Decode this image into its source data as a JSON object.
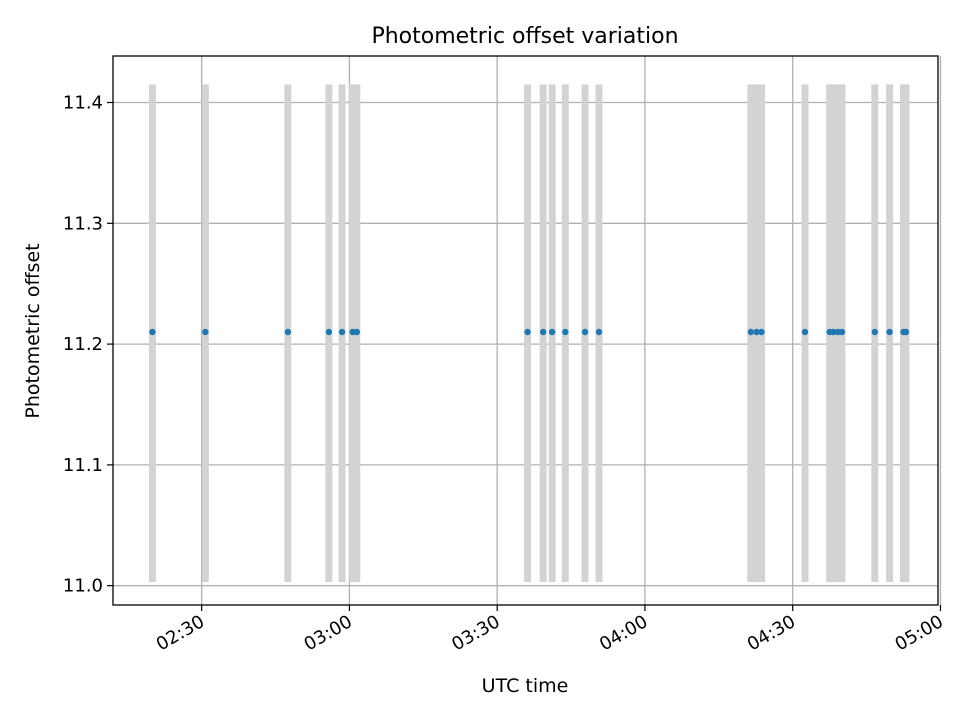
{
  "chart_data": {
    "type": "scatter",
    "title": "Photometric offset variation",
    "xlabel": "UTC time",
    "ylabel": "Photometric offset",
    "xlim": [
      "02:12:00",
      "04:59:30"
    ],
    "ylim": [
      10.984,
      11.4385
    ],
    "grid": true,
    "x_ticks": [
      "02:30",
      "03:00",
      "03:30",
      "04:00",
      "04:30",
      "05:00"
    ],
    "y_ticks": [
      11.0,
      11.1,
      11.2,
      11.3,
      11.4
    ],
    "y_tick_labels": [
      "11.0",
      "11.1",
      "11.2",
      "11.3",
      "11.4"
    ],
    "band": {
      "color": "#d3d3d3",
      "y_range": [
        11.003,
        11.415
      ]
    },
    "point_color": "#1f77b4",
    "x": [
      "02:20:00",
      "02:30:45",
      "02:47:30",
      "02:55:50",
      "02:58:30",
      "03:00:40",
      "03:01:30",
      "03:36:10",
      "03:39:20",
      "03:41:10",
      "03:43:50",
      "03:47:50",
      "03:50:40",
      "04:21:30",
      "04:22:40",
      "04:23:40",
      "04:32:30",
      "04:37:30",
      "04:38:15",
      "04:39:10",
      "04:40:00",
      "04:46:40",
      "04:49:40",
      "04:52:30",
      "04:53:00"
    ],
    "y": [
      11.21,
      11.21,
      11.21,
      11.21,
      11.21,
      11.21,
      11.21,
      11.21,
      11.21,
      11.21,
      11.21,
      11.21,
      11.21,
      11.21,
      11.21,
      11.21,
      11.21,
      11.21,
      11.21,
      11.21,
      11.21,
      11.21,
      11.21,
      11.21,
      11.21
    ]
  }
}
